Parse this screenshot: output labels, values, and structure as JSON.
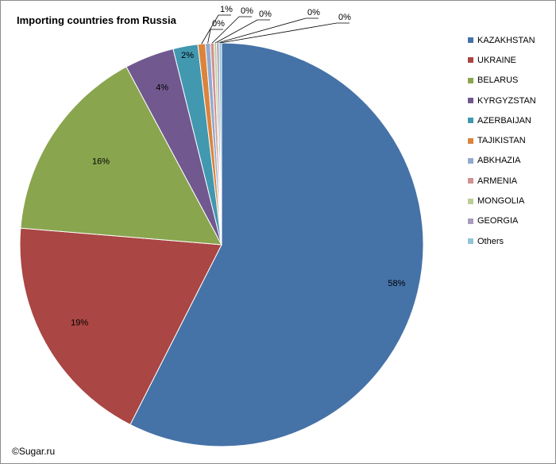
{
  "chart_data": {
    "type": "pie",
    "title": "Importing countries from Russia",
    "slices": [
      {
        "label": "KAZAKHSTAN",
        "value": 58,
        "display": "58%",
        "color": "#4572A7"
      },
      {
        "label": "UKRAINE",
        "value": 19,
        "display": "19%",
        "color": "#AA4643"
      },
      {
        "label": "BELARUS",
        "value": 16,
        "display": "16%",
        "color": "#89A54E"
      },
      {
        "label": "KYRGYZSTAN",
        "value": 4,
        "display": "4%",
        "color": "#71588F"
      },
      {
        "label": "AZERBAIJAN",
        "value": 2,
        "display": "2%",
        "color": "#4198AF"
      },
      {
        "label": "TAJIKISTAN",
        "value": 0.6,
        "display": "1%",
        "color": "#DB843D"
      },
      {
        "label": "ABKHAZIA",
        "value": 0.4,
        "display": "0%",
        "color": "#93A9CF"
      },
      {
        "label": "ARMENIA",
        "value": 0.3,
        "display": "0%",
        "color": "#D19392"
      },
      {
        "label": "MONGOLIA",
        "value": 0.2,
        "display": "0%",
        "color": "#B9CD96"
      },
      {
        "label": "GEORGIA",
        "value": 0.2,
        "display": "0%",
        "color": "#A99BBD"
      },
      {
        "label": "Others",
        "value": 0.2,
        "display": "0%",
        "color": "#92C5D7"
      }
    ],
    "legend_position": "right"
  },
  "copyright": "©Sugar.ru"
}
